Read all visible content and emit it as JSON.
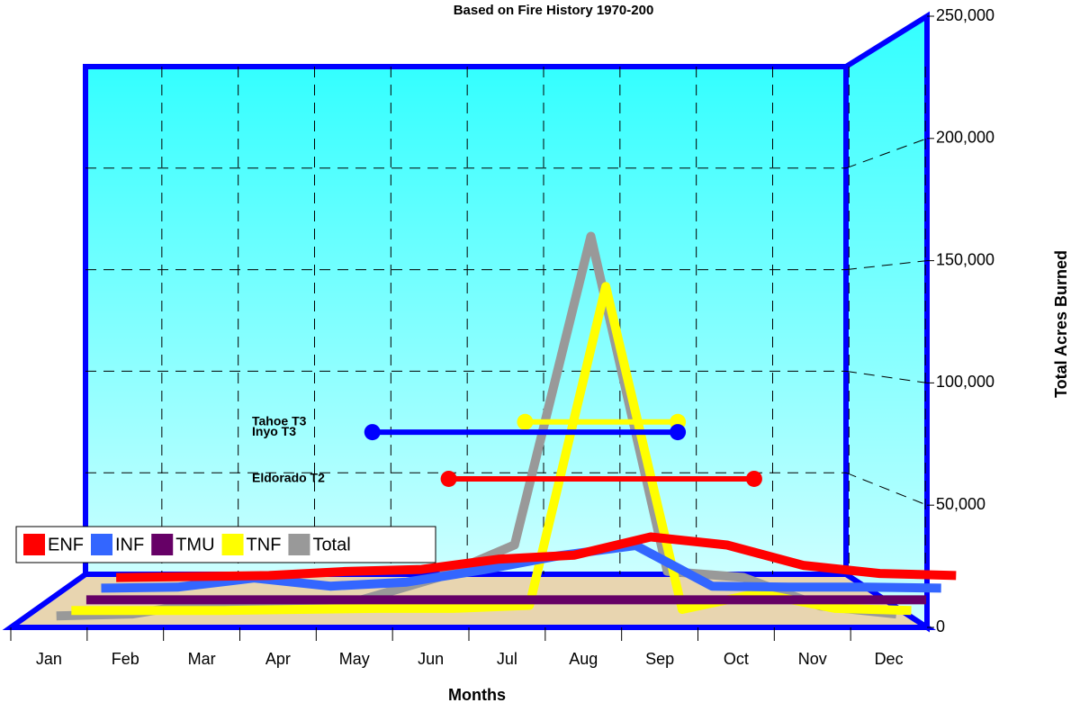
{
  "chart_data": {
    "type": "line",
    "title": "Based on Fire History 1970-200",
    "x_label": "Months",
    "y_label": "Total Acres Burned",
    "categories": [
      "Jan",
      "Feb",
      "Mar",
      "Apr",
      "May",
      "Jun",
      "Jul",
      "Aug",
      "Sep",
      "Oct",
      "Nov",
      "Dec"
    ],
    "series": [
      {
        "name": "ENF",
        "color": "#ff0000",
        "values": [
          1000,
          1500,
          2000,
          4000,
          5000,
          10000,
          12000,
          21000,
          17000,
          7000,
          3000,
          2000
        ]
      },
      {
        "name": "INF",
        "color": "#3366ff",
        "values": [
          1000,
          1500,
          6000,
          2000,
          4000,
          10000,
          17000,
          22000,
          2000,
          1500,
          1500,
          1000
        ]
      },
      {
        "name": "TMU",
        "color": "#660066",
        "values": [
          500,
          500,
          500,
          500,
          500,
          500,
          500,
          500,
          500,
          500,
          500,
          500
        ]
      },
      {
        "name": "TNF",
        "color": "#ffff00",
        "values": [
          500,
          500,
          500,
          1000,
          1500,
          1500,
          3000,
          160000,
          1000,
          9000,
          1500,
          500
        ]
      },
      {
        "name": "Total",
        "color": "#999999",
        "values": [
          3000,
          4000,
          10000,
          8000,
          11000,
          22000,
          38000,
          190000,
          25000,
          22000,
          8000,
          4000
        ]
      }
    ],
    "annotations": [
      {
        "label": "Tahoe T3",
        "color": "#ffff00",
        "start": "Jul",
        "end": "Sep",
        "value": 75000
      },
      {
        "label": "Inyo T3",
        "color": "#0000ff",
        "start": "May",
        "end": "Sep",
        "value": 70000
      },
      {
        "label": "Eldorado T2",
        "color": "#ff0000",
        "start": "Jun",
        "end": "Oct",
        "value": 47000
      }
    ],
    "ylim": [
      0,
      250000
    ],
    "yticks": [
      0,
      {
        "value": 50000,
        "label": "50,000"
      },
      {
        "value": 100000,
        "label": "100,000"
      },
      {
        "value": 150000,
        "label": "150,000"
      },
      {
        "value": 200000,
        "label": "200,000"
      },
      {
        "value": 250000,
        "label": "250,000"
      }
    ],
    "grid": true,
    "legend": "lower left"
  }
}
